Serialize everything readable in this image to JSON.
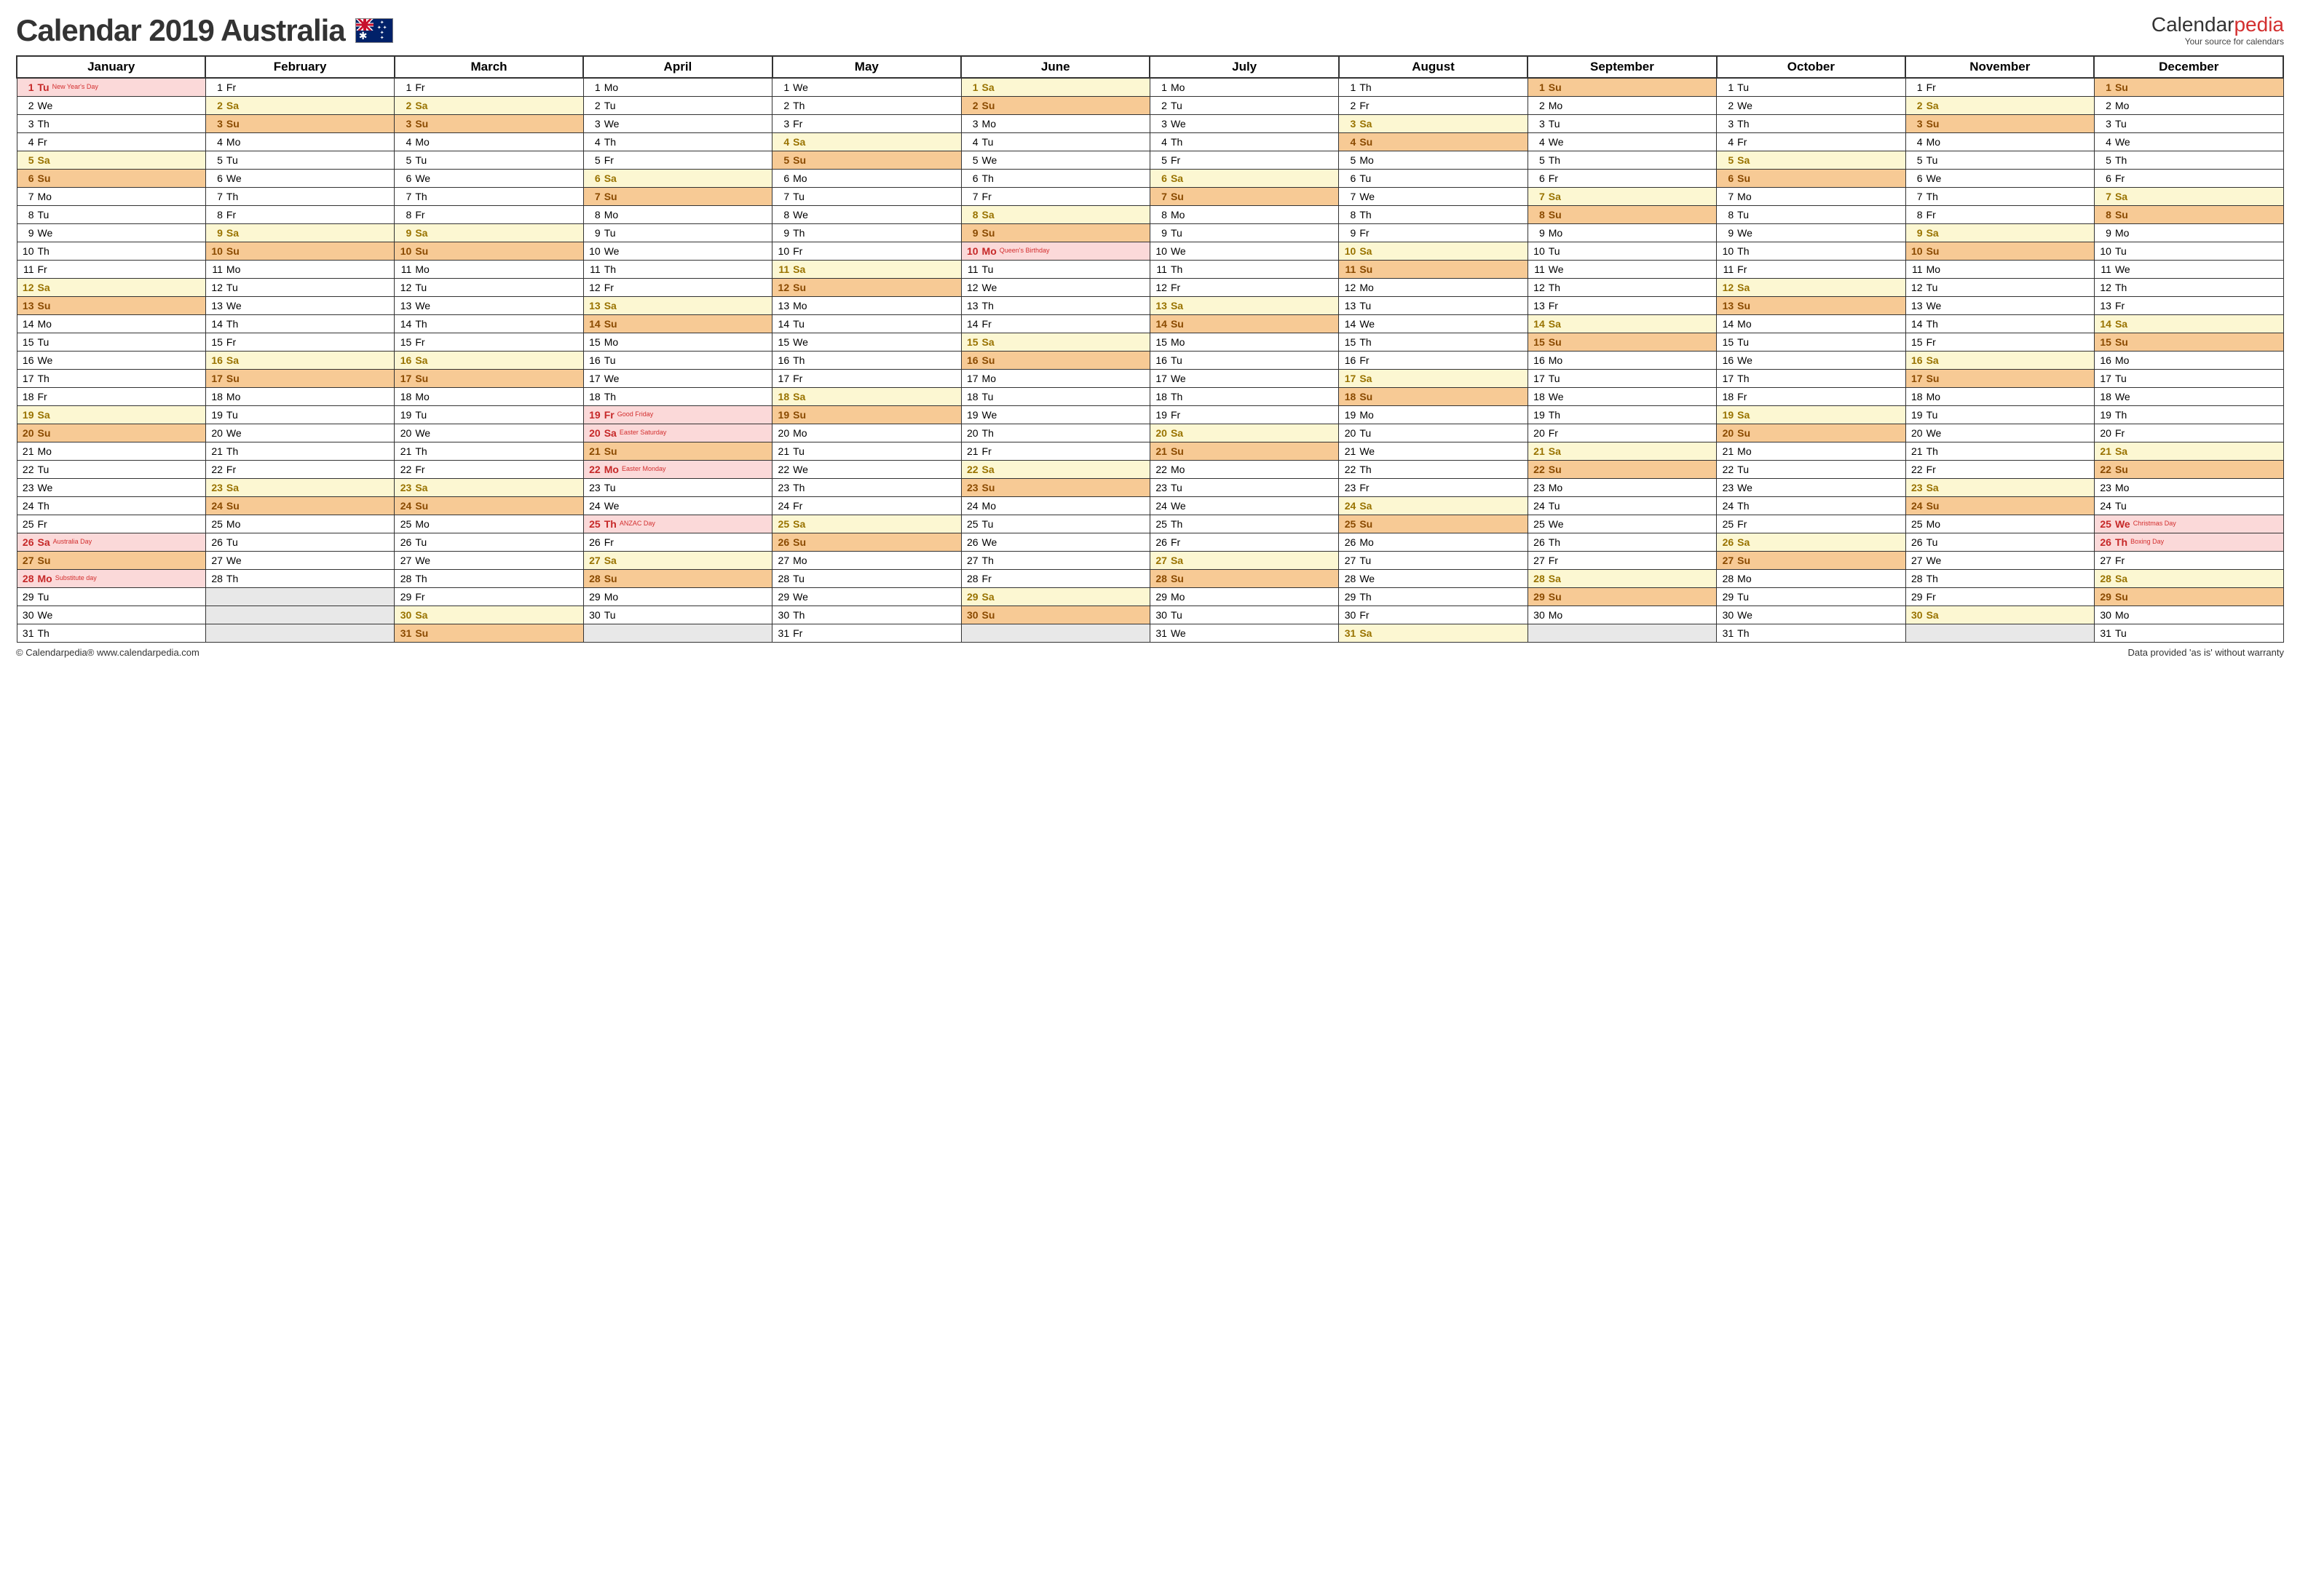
{
  "title": "Calendar 2019 Australia",
  "brand": {
    "name1": "Calendar",
    "name2": "pedia",
    "tag": "Your source for calendars"
  },
  "footer": {
    "left": "© Calendarpedia®   www.calendarpedia.com",
    "right": "Data provided 'as is' without warranty"
  },
  "colors": {
    "sat_bg": "#fcf7d2",
    "sat_fg": "#997300",
    "sun_bg": "#f7ca95",
    "sun_fg": "#8a4a00",
    "hol_bg": "#fbd9d9",
    "hol_fg": "#c62828",
    "empty_bg": "#e8e8e8",
    "border": "#333333",
    "title_fontsize": 42,
    "header_fontsize": 17,
    "cell_fontsize": 14,
    "event_fontsize": 9
  },
  "weekdays": [
    "Su",
    "Mo",
    "Tu",
    "We",
    "Th",
    "Fr",
    "Sa"
  ],
  "months": [
    {
      "name": "January",
      "start": 2,
      "len": 31
    },
    {
      "name": "February",
      "start": 5,
      "len": 28
    },
    {
      "name": "March",
      "start": 5,
      "len": 31
    },
    {
      "name": "April",
      "start": 1,
      "len": 30
    },
    {
      "name": "May",
      "start": 3,
      "len": 31
    },
    {
      "name": "June",
      "start": 6,
      "len": 30
    },
    {
      "name": "July",
      "start": 1,
      "len": 31
    },
    {
      "name": "August",
      "start": 4,
      "len": 31
    },
    {
      "name": "September",
      "start": 0,
      "len": 30
    },
    {
      "name": "October",
      "start": 2,
      "len": 31
    },
    {
      "name": "November",
      "start": 5,
      "len": 30
    },
    {
      "name": "December",
      "start": 0,
      "len": 31
    }
  ],
  "holidays": {
    "0": {
      "1": "New Year's Day",
      "26": "Australia Day",
      "28": "Substitute day"
    },
    "3": {
      "19": "Good Friday",
      "20": "Easter Saturday",
      "22": "Easter Monday",
      "25": "ANZAC Day"
    },
    "5": {
      "10": "Queen's Birthday"
    },
    "11": {
      "25": "Christmas Day",
      "26": "Boxing Day"
    }
  }
}
